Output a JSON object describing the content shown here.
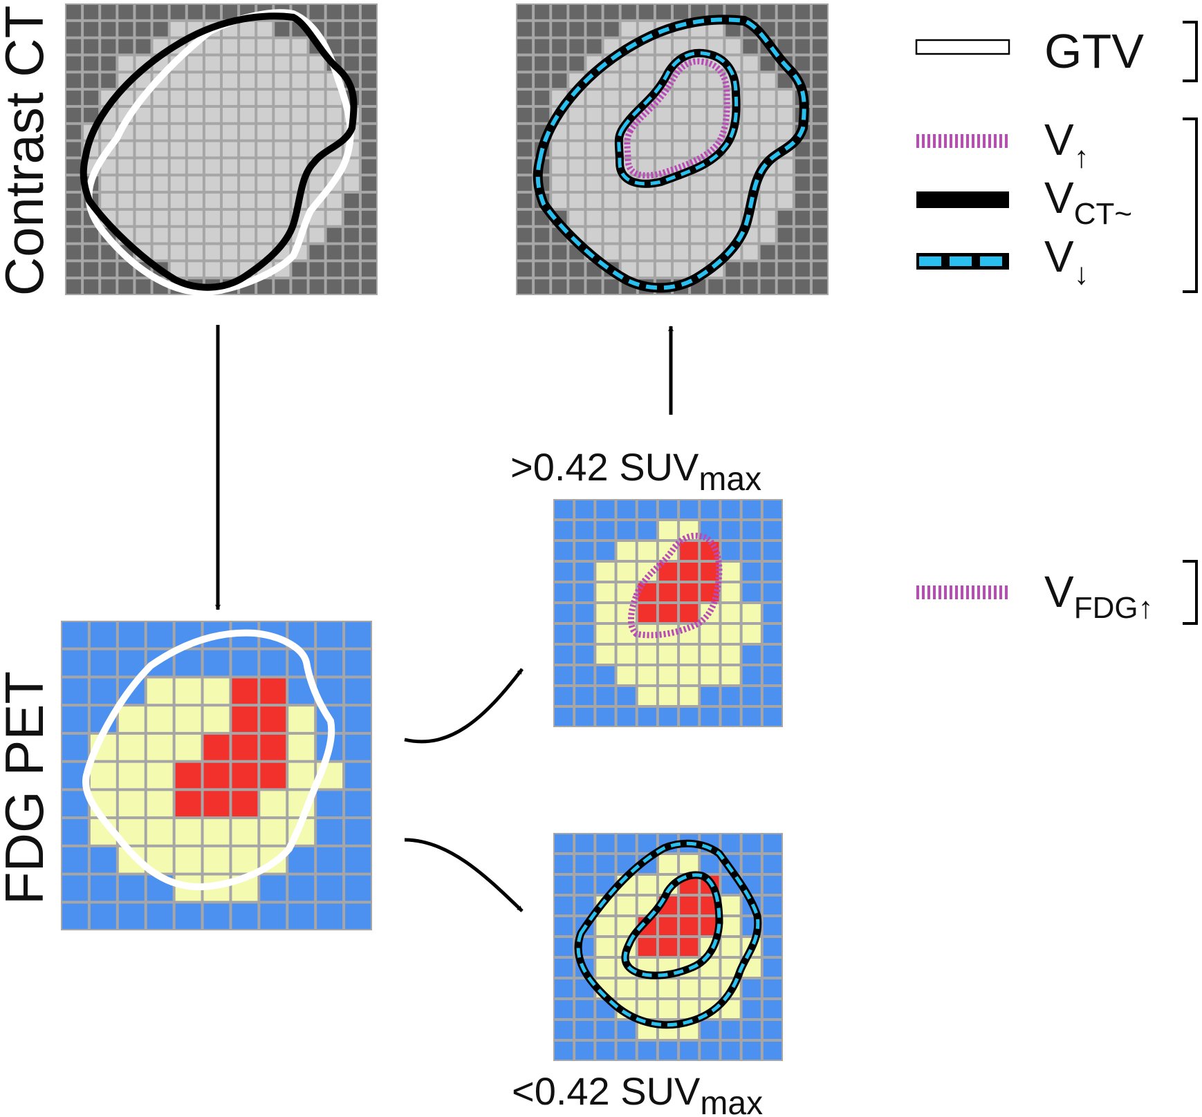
{
  "labels": {
    "contrast_ct": "Contrast CT",
    "fdg_pet": "FDG PET",
    "above_threshold": {
      "prefix": ">0.42 SUV",
      "sub": "max"
    },
    "below_threshold": {
      "prefix": "<0.42 SUV",
      "sub": "max"
    }
  },
  "legend": {
    "gtv": {
      "text": "GTV"
    },
    "v_up": {
      "main": "V",
      "sub": "↑"
    },
    "v_ct": {
      "main": "V",
      "sub": "CT~"
    },
    "v_down": {
      "main": "V",
      "sub": "↓"
    },
    "v_fdg_up": {
      "main": "V",
      "sub": "FDG↑"
    }
  },
  "colors": {
    "ct_outer_fill": "#666666",
    "ct_inner_fill": "#cfcfcf",
    "grid_line": "#a6a6a6",
    "pet_background": "#4d91f0",
    "pet_low_uptake": "#f4fbb0",
    "pet_high_uptake": "#f2302c",
    "magenta_contour": "#b94ab7",
    "cyan_contour": "#29c0ef",
    "black_contour": "#000000",
    "gtv_contour": "#ffffff"
  }
}
